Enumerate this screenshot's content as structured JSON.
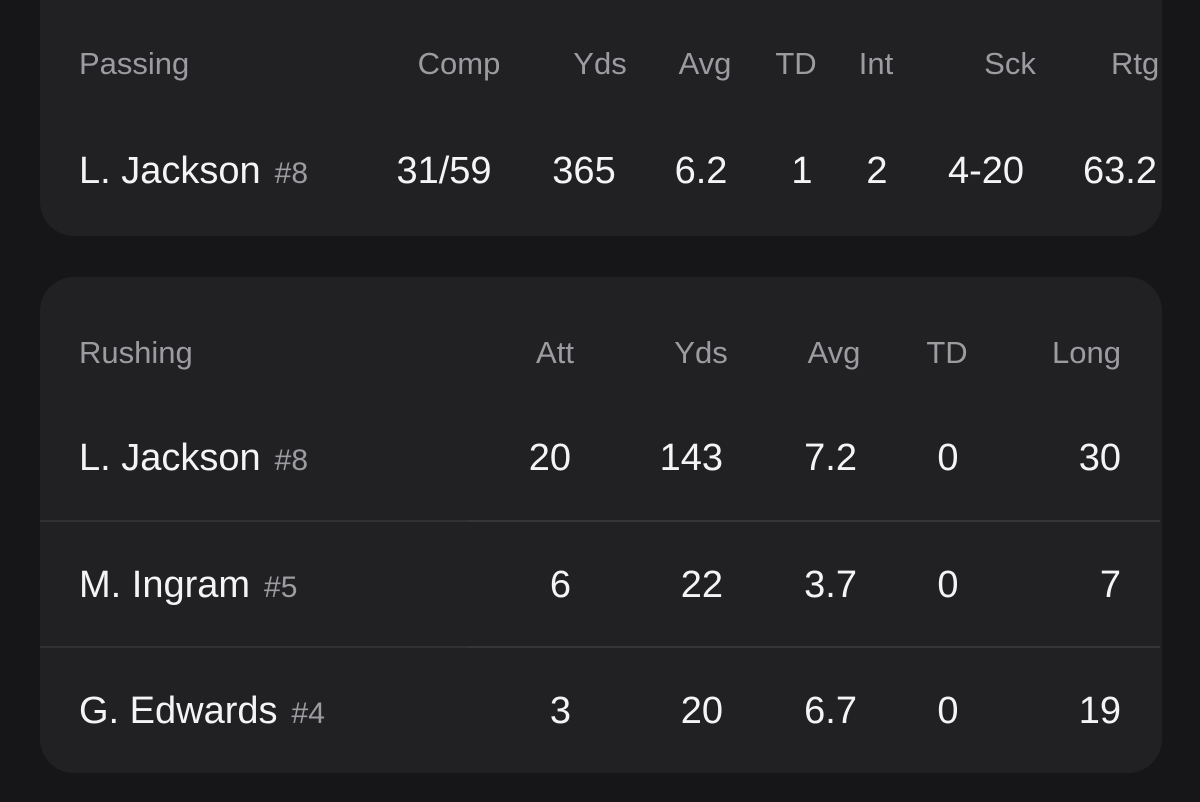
{
  "passing": {
    "label": "Passing",
    "columns": [
      "Comp",
      "Yds",
      "Avg",
      "TD",
      "Int",
      "Sck",
      "Rtg"
    ],
    "rows": [
      {
        "name": "L. Jackson",
        "number": "#8",
        "values": [
          "31/59",
          "365",
          "6.2",
          "1",
          "2",
          "4-20",
          "63.2"
        ]
      }
    ]
  },
  "rushing": {
    "label": "Rushing",
    "columns": [
      "Att",
      "Yds",
      "Avg",
      "TD",
      "Long"
    ],
    "rows": [
      {
        "name": "L. Jackson",
        "number": "#8",
        "values": [
          "20",
          "143",
          "7.2",
          "0",
          "30"
        ]
      },
      {
        "name": "M. Ingram",
        "number": "#5",
        "values": [
          "6",
          "22",
          "3.7",
          "0",
          "7"
        ]
      },
      {
        "name": "G. Edwards",
        "number": "#4",
        "values": [
          "3",
          "20",
          "6.7",
          "0",
          "19"
        ]
      }
    ]
  }
}
